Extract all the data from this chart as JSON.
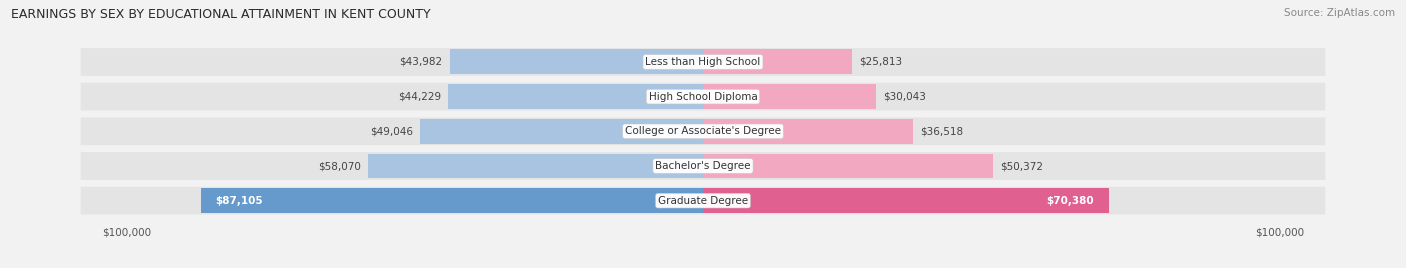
{
  "title": "EARNINGS BY SEX BY EDUCATIONAL ATTAINMENT IN KENT COUNTY",
  "source": "Source: ZipAtlas.com",
  "categories": [
    "Less than High School",
    "High School Diploma",
    "College or Associate's Degree",
    "Bachelor's Degree",
    "Graduate Degree"
  ],
  "male_values": [
    43982,
    44229,
    49046,
    58070,
    87105
  ],
  "female_values": [
    25813,
    30043,
    36518,
    50372,
    70380
  ],
  "male_color": "#a8c4e0",
  "female_color": "#f2a8c0",
  "male_highlight_color": "#6699cc",
  "female_highlight_color": "#e06090",
  "row_bg_color": "#e4e4e4",
  "legend_male_color": "#a8c4e0",
  "legend_female_color": "#f2a8c0",
  "max_value": 100000,
  "background_color": "#f2f2f2",
  "title_fontsize": 9,
  "source_fontsize": 7.5,
  "bar_label_fontsize": 7.5,
  "category_fontsize": 7.5,
  "axis_label_fontsize": 7.5
}
